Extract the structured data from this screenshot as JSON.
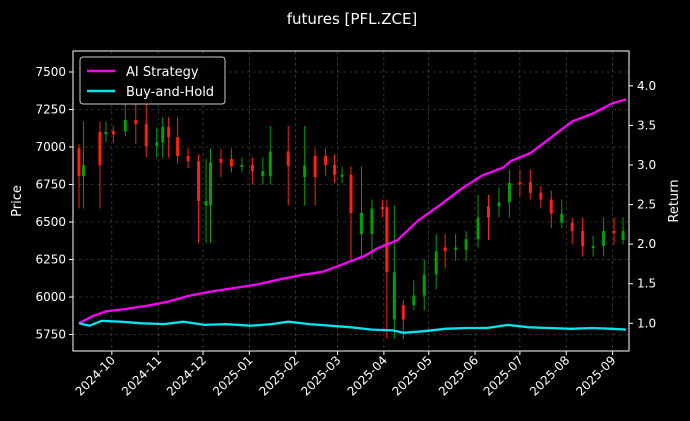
{
  "chart_data": {
    "type": "line",
    "title": "futures [PFL.ZCE]",
    "xlabel": "",
    "ylabel_left": "Price",
    "ylabel_right": "Return",
    "x_ticks": [
      "2024-10",
      "2024-11",
      "2024-12",
      "2025-01",
      "2025-02",
      "2025-03",
      "2025-04",
      "2025-05",
      "2025-06",
      "2025-07",
      "2025-08",
      "2025-09"
    ],
    "y_left_ticks": [
      5750,
      6000,
      6250,
      6500,
      6750,
      7000,
      7250,
      7500
    ],
    "y_left_range": [
      5640,
      7640
    ],
    "y_right_ticks": [
      "1.0",
      "1.5",
      "2.0",
      "2.5",
      "3.0",
      "3.5",
      "4.0"
    ],
    "y_right_range": [
      0.65,
      4.44
    ],
    "grid": true,
    "legend_position": "top-left",
    "series": [
      {
        "name": "AI Strategy",
        "color": "#ff00ff",
        "axis": "right",
        "points": [
          [
            "2024-09-09",
            1.0
          ],
          [
            "2024-09-18",
            1.09
          ],
          [
            "2024-09-27",
            1.15
          ],
          [
            "2024-10-10",
            1.18
          ],
          [
            "2024-10-24",
            1.22
          ],
          [
            "2024-11-07",
            1.27
          ],
          [
            "2024-11-22",
            1.35
          ],
          [
            "2024-12-06",
            1.4
          ],
          [
            "2024-12-20",
            1.44
          ],
          [
            "2025-01-06",
            1.49
          ],
          [
            "2025-01-20",
            1.55
          ],
          [
            "2025-02-05",
            1.61
          ],
          [
            "2025-02-19",
            1.65
          ],
          [
            "2025-03-05",
            1.75
          ],
          [
            "2025-03-19",
            1.85
          ],
          [
            "2025-03-28",
            1.95
          ],
          [
            "2025-04-10",
            2.05
          ],
          [
            "2025-04-24",
            2.3
          ],
          [
            "2025-05-09",
            2.5
          ],
          [
            "2025-05-23",
            2.7
          ],
          [
            "2025-06-06",
            2.87
          ],
          [
            "2025-06-20",
            2.97
          ],
          [
            "2025-06-25",
            3.05
          ],
          [
            "2025-07-08",
            3.15
          ],
          [
            "2025-07-22",
            3.35
          ],
          [
            "2025-08-05",
            3.55
          ],
          [
            "2025-08-19",
            3.65
          ],
          [
            "2025-09-01",
            3.78
          ],
          [
            "2025-09-10",
            3.83
          ]
        ]
      },
      {
        "name": "Buy-and-Hold",
        "color": "#00e5ee",
        "axis": "right",
        "points": [
          [
            "2024-09-09",
            1.0
          ],
          [
            "2024-09-16",
            0.97
          ],
          [
            "2024-09-24",
            1.03
          ],
          [
            "2024-10-07",
            1.02
          ],
          [
            "2024-10-21",
            1.0
          ],
          [
            "2024-11-05",
            0.99
          ],
          [
            "2024-11-18",
            1.02
          ],
          [
            "2024-12-02",
            0.98
          ],
          [
            "2024-12-16",
            0.99
          ],
          [
            "2025-01-02",
            0.97
          ],
          [
            "2025-01-16",
            0.99
          ],
          [
            "2025-01-27",
            1.02
          ],
          [
            "2025-02-10",
            0.99
          ],
          [
            "2025-02-24",
            0.97
          ],
          [
            "2025-03-10",
            0.95
          ],
          [
            "2025-03-24",
            0.92
          ],
          [
            "2025-04-07",
            0.91
          ],
          [
            "2025-04-14",
            0.88
          ],
          [
            "2025-04-28",
            0.9
          ],
          [
            "2025-05-12",
            0.93
          ],
          [
            "2025-05-26",
            0.94
          ],
          [
            "2025-06-09",
            0.94
          ],
          [
            "2025-06-23",
            0.98
          ],
          [
            "2025-07-07",
            0.95
          ],
          [
            "2025-07-21",
            0.94
          ],
          [
            "2025-08-04",
            0.93
          ],
          [
            "2025-08-18",
            0.94
          ],
          [
            "2025-09-01",
            0.93
          ],
          [
            "2025-09-10",
            0.92
          ]
        ]
      }
    ],
    "candles": {
      "axis": "left",
      "up_color": "#00a000",
      "down_color": "#ff2010",
      "points": [
        [
          "2024-09-09",
          6990
        ],
        [
          "2024-09-12",
          6620
        ],
        [
          "2024-09-23",
          7140
        ],
        [
          "2024-09-27",
          7060
        ],
        [
          "2024-10-02",
          7110
        ],
        [
          "2024-10-10",
          7100
        ],
        [
          "2024-10-17",
          7260
        ],
        [
          "2024-10-24",
          7050
        ],
        [
          "2024-10-31",
          6960
        ],
        [
          "2024-11-04",
          7100
        ],
        [
          "2024-11-08",
          7170
        ],
        [
          "2024-11-14",
          6960
        ],
        [
          "2024-11-21",
          6920
        ],
        [
          "2024-11-28",
          6890
        ],
        [
          "2024-12-03",
          6390
        ],
        [
          "2024-12-06",
          6830
        ],
        [
          "2024-12-13",
          6960
        ],
        [
          "2024-12-20",
          6880
        ],
        [
          "2024-12-27",
          6860
        ],
        [
          "2025-01-03",
          6900
        ],
        [
          "2025-01-10",
          6780
        ],
        [
          "2025-01-15",
          6830
        ],
        [
          "2025-01-27",
          7110
        ],
        [
          "2025-02-07",
          6640
        ],
        [
          "2025-02-14",
          6960
        ],
        [
          "2025-02-21",
          6920
        ],
        [
          "2025-02-27",
          6840
        ],
        [
          "2025-03-04",
          6790
        ],
        [
          "2025-03-10",
          6840
        ],
        [
          "2025-03-17",
          6280
        ],
        [
          "2025-03-24",
          6560
        ],
        [
          "2025-03-31",
          6620
        ],
        [
          "2025-04-03",
          6580
        ],
        [
          "2025-04-08",
          5750
        ],
        [
          "2025-04-14",
          5950
        ],
        [
          "2025-04-21",
          5940
        ],
        [
          "2025-04-28",
          6080
        ],
        [
          "2025-05-06",
          6220
        ],
        [
          "2025-05-12",
          6390
        ],
        [
          "2025-05-19",
          6270
        ],
        [
          "2025-05-26",
          6360
        ],
        [
          "2025-06-03",
          6410
        ],
        [
          "2025-06-10",
          6650
        ],
        [
          "2025-06-17",
          6560
        ],
        [
          "2025-06-24",
          6700
        ],
        [
          "2025-07-01",
          6820
        ],
        [
          "2025-07-08",
          6710
        ],
        [
          "2025-07-15",
          6680
        ],
        [
          "2025-07-22",
          6620
        ],
        [
          "2025-07-29",
          6490
        ],
        [
          "2025-08-05",
          6500
        ],
        [
          "2025-08-12",
          6380
        ],
        [
          "2025-08-19",
          6300
        ],
        [
          "2025-08-26",
          6380
        ],
        [
          "2025-09-02",
          6500
        ],
        [
          "2025-09-08",
          6380
        ]
      ]
    }
  }
}
